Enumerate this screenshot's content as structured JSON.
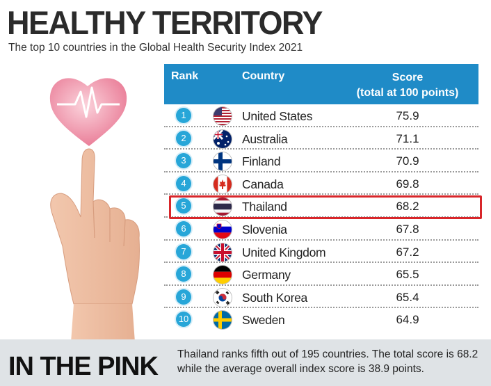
{
  "headline": "HEALTHY TERRITORY",
  "subtitle": "The top 10 countries in the Global Health Security Index 2021",
  "table": {
    "header_rank": "Rank",
    "header_country": "Country",
    "header_score_line1": "Score",
    "header_score_line2": "(total at 100 points)",
    "header_color": "#1f8bc7",
    "highlight_color": "#d8262a"
  },
  "chart_data": {
    "type": "table",
    "title": "HEALTHY TERRITORY",
    "subtitle": "The top 10 countries in the Global Health Security Index 2021",
    "columns": [
      "Rank",
      "Country",
      "Score (total at 100 points)"
    ],
    "rows": [
      {
        "rank": "1",
        "country": "United States",
        "score": "75.9",
        "flag": "us-flag-icon"
      },
      {
        "rank": "2",
        "country": "Australia",
        "score": "71.1",
        "flag": "australia-flag-icon"
      },
      {
        "rank": "3",
        "country": "Finland",
        "score": "70.9",
        "flag": "finland-flag-icon"
      },
      {
        "rank": "4",
        "country": "Canada",
        "score": "69.8",
        "flag": "canada-flag-icon"
      },
      {
        "rank": "5",
        "country": "Thailand",
        "score": "68.2",
        "flag": "thailand-flag-icon"
      },
      {
        "rank": "6",
        "country": "Slovenia",
        "score": "67.8",
        "flag": "slovenia-flag-icon"
      },
      {
        "rank": "7",
        "country": "United Kingdom",
        "score": "67.2",
        "flag": "uk-flag-icon"
      },
      {
        "rank": "8",
        "country": "Germany",
        "score": "65.5",
        "flag": "germany-flag-icon"
      },
      {
        "rank": "9",
        "country": "South Korea",
        "score": "65.4",
        "flag": "south-korea-flag-icon"
      },
      {
        "rank": "10",
        "country": "Sweden",
        "score": "64.9",
        "flag": "sweden-flag-icon"
      }
    ],
    "highlighted_rank": "5"
  },
  "footer": {
    "title": "IN THE PINK",
    "text": "Thailand ranks fifth out of 195 countries. The total score is 68.2 while the average overall index score is 38.9 points."
  }
}
